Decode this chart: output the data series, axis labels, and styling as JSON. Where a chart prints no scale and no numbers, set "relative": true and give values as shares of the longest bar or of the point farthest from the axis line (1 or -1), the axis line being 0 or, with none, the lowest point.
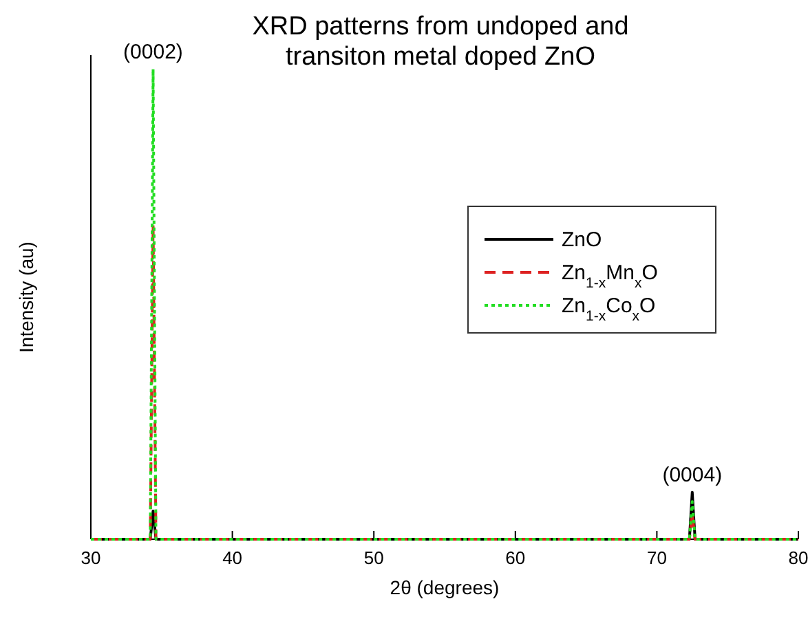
{
  "chart_data": {
    "type": "line",
    "title": "XRD patterns from undoped and\ntransiton metal doped ZnO",
    "xlabel": "2θ (degrees)",
    "ylabel": "Intensity (au)",
    "relative": true,
    "xlim": [
      30,
      80
    ],
    "xticks": [
      30,
      40,
      50,
      60,
      70,
      80
    ],
    "x": [
      30,
      34.2,
      34.4,
      34.6,
      72.3,
      72.5,
      72.7,
      80
    ],
    "series": [
      {
        "name": "ZnO",
        "color": "#000000",
        "line_style": "solid",
        "values": [
          0,
          0,
          0.06,
          0,
          0,
          0.1,
          0,
          0
        ]
      },
      {
        "name": "Zn$_{1-x}$Mn$_{x}$O",
        "color": "#dd2222",
        "line_style": "dashed",
        "values": [
          0,
          0,
          0.67,
          0,
          0,
          0.055,
          0,
          0
        ]
      },
      {
        "name": "Zn$_{1-x}$Co$_{x}$O",
        "color": "#22dd22",
        "line_style": "dotted",
        "values": [
          0,
          0,
          1,
          0,
          0,
          0.08,
          0,
          0
        ]
      }
    ],
    "annotations": [
      {
        "text": "(0002)",
        "x": 34.4,
        "y": 1
      },
      {
        "text": "(0004)",
        "x": 72.5,
        "y": 0.1
      }
    ],
    "legend": "right",
    "grid": false,
    "marker": "none"
  }
}
